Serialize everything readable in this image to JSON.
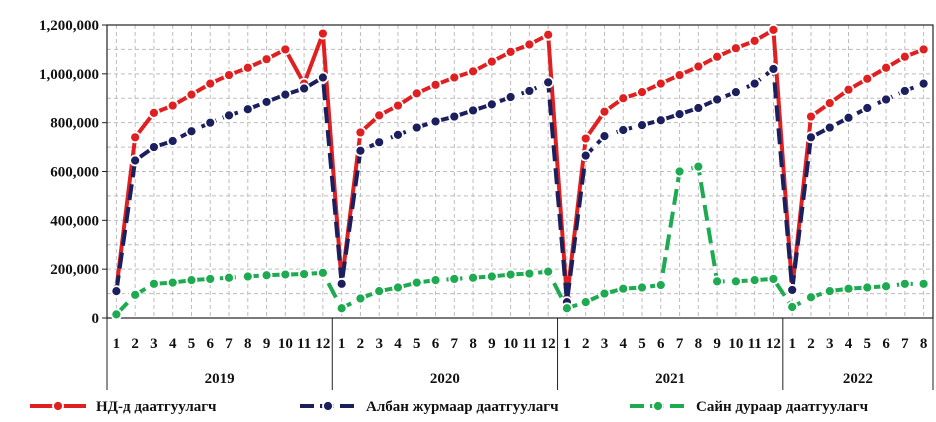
{
  "chart_data": {
    "type": "line",
    "title": "",
    "xlabel": "",
    "ylabel": "",
    "ylim": [
      0,
      1200000
    ],
    "yticks": [
      0,
      200000,
      400000,
      600000,
      800000,
      1000000,
      1200000
    ],
    "ytick_labels": [
      "0",
      "200,000",
      "400,000",
      "600,000",
      "800,000",
      "1,000,000",
      "1,200,000"
    ],
    "grid": true,
    "legend_position": "bottom",
    "year_groups": [
      {
        "label": "2019",
        "months": [
          "1",
          "2",
          "3",
          "4",
          "5",
          "6",
          "7",
          "8",
          "9",
          "10",
          "11",
          "12"
        ]
      },
      {
        "label": "2020",
        "months": [
          "1",
          "2",
          "3",
          "4",
          "5",
          "6",
          "7",
          "8",
          "9",
          "10",
          "11",
          "12"
        ]
      },
      {
        "label": "2021",
        "months": [
          "1",
          "2",
          "3",
          "4",
          "5",
          "6",
          "7",
          "8",
          "9",
          "10",
          "11",
          "12"
        ]
      },
      {
        "label": "2022",
        "months": [
          "1",
          "2",
          "3",
          "4",
          "5",
          "6",
          "7",
          "8"
        ]
      }
    ],
    "series": [
      {
        "name": "НД-д даатгуулагч",
        "color": "#e02020",
        "dash": "solid",
        "values": [
          120000,
          740000,
          840000,
          870000,
          915000,
          960000,
          995000,
          1025000,
          1060000,
          1100000,
          960000,
          1165000,
          145000,
          760000,
          830000,
          870000,
          920000,
          955000,
          985000,
          1010000,
          1050000,
          1090000,
          1120000,
          1160000,
          80000,
          735000,
          845000,
          900000,
          925000,
          960000,
          995000,
          1030000,
          1070000,
          1105000,
          1135000,
          1180000,
          120000,
          825000,
          880000,
          935000,
          980000,
          1025000,
          1070000,
          1100000
        ]
      },
      {
        "name": "Албан журмаар даатгуулагч",
        "color": "#1c1f5e",
        "dash": "dashed",
        "values": [
          110000,
          645000,
          700000,
          725000,
          765000,
          800000,
          830000,
          855000,
          885000,
          915000,
          940000,
          985000,
          140000,
          685000,
          720000,
          750000,
          780000,
          805000,
          825000,
          850000,
          875000,
          905000,
          930000,
          965000,
          65000,
          665000,
          745000,
          770000,
          790000,
          810000,
          835000,
          860000,
          895000,
          925000,
          960000,
          1020000,
          115000,
          740000,
          780000,
          820000,
          860000,
          895000,
          930000,
          960000
        ]
      },
      {
        "name": "Сайн дураар даатгуулагч",
        "color": "#1daa50",
        "dash": "dashed",
        "values": [
          15000,
          95000,
          140000,
          145000,
          155000,
          160000,
          165000,
          170000,
          175000,
          178000,
          180000,
          185000,
          40000,
          80000,
          110000,
          125000,
          145000,
          155000,
          160000,
          165000,
          170000,
          178000,
          182000,
          190000,
          40000,
          65000,
          100000,
          120000,
          125000,
          135000,
          600000,
          620000,
          150000,
          150000,
          155000,
          160000,
          45000,
          85000,
          110000,
          120000,
          125000,
          130000,
          140000,
          140000
        ]
      }
    ]
  }
}
